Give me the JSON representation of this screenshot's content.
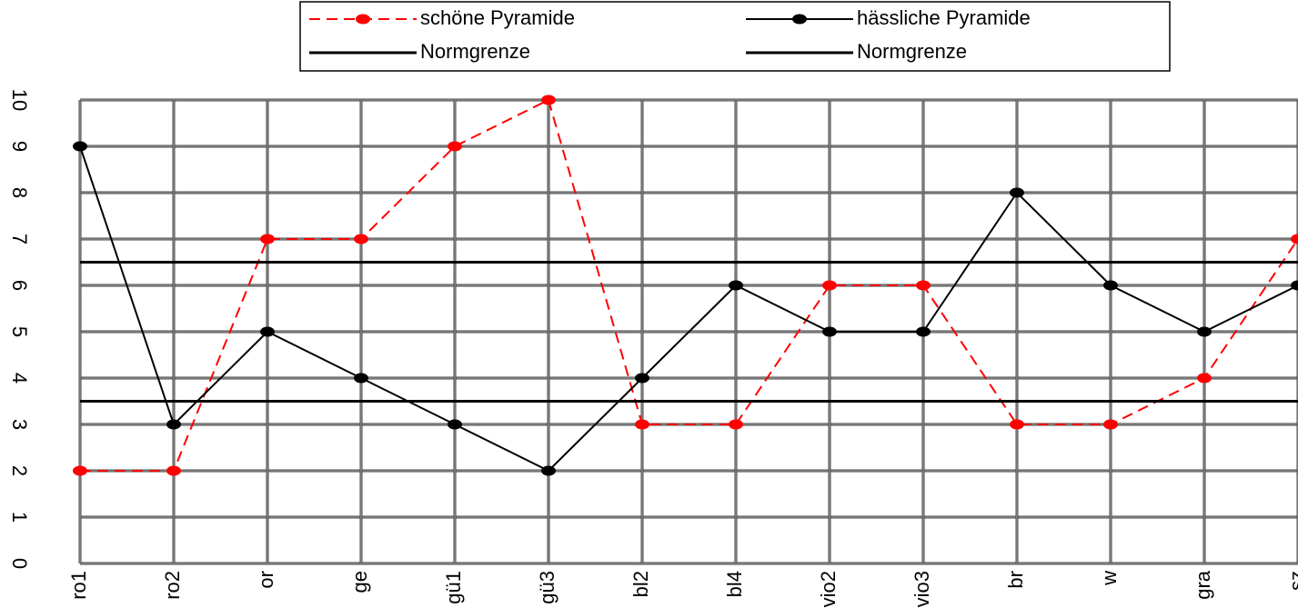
{
  "chart_data": {
    "type": "line",
    "categories": [
      "ro1",
      "ro2",
      "or",
      "ge",
      "gü1",
      "gü3",
      "bl2",
      "bl4",
      "vio2",
      "vio3",
      "br",
      "w",
      "gra",
      "sz"
    ],
    "series": [
      {
        "name": "schöne Pyramide",
        "color": "#ff0000",
        "dashed": true,
        "markers": true,
        "values": [
          2,
          2,
          7,
          7,
          9,
          10,
          3,
          3,
          6,
          6,
          3,
          3,
          4,
          7
        ]
      },
      {
        "name": "hässliche Pyramide",
        "color": "#000000",
        "dashed": false,
        "markers": true,
        "values": [
          9,
          3,
          5,
          4,
          3,
          2,
          4,
          6,
          5,
          5,
          8,
          6,
          5,
          6
        ]
      },
      {
        "name": "Normgrenze",
        "color": "#000000",
        "dashed": false,
        "markers": false,
        "values": [
          6.5,
          6.5,
          6.5,
          6.5,
          6.5,
          6.5,
          6.5,
          6.5,
          6.5,
          6.5,
          6.5,
          6.5,
          6.5,
          6.5
        ]
      },
      {
        "name": "Normgrenze",
        "color": "#000000",
        "dashed": false,
        "markers": false,
        "values": [
          3.5,
          3.5,
          3.5,
          3.5,
          3.5,
          3.5,
          3.5,
          3.5,
          3.5,
          3.5,
          3.5,
          3.5,
          3.5,
          3.5
        ]
      }
    ],
    "ylim": [
      0,
      10
    ],
    "yticks": [
      0,
      1,
      2,
      3,
      4,
      5,
      6,
      7,
      8,
      9,
      10
    ],
    "grid": true
  }
}
